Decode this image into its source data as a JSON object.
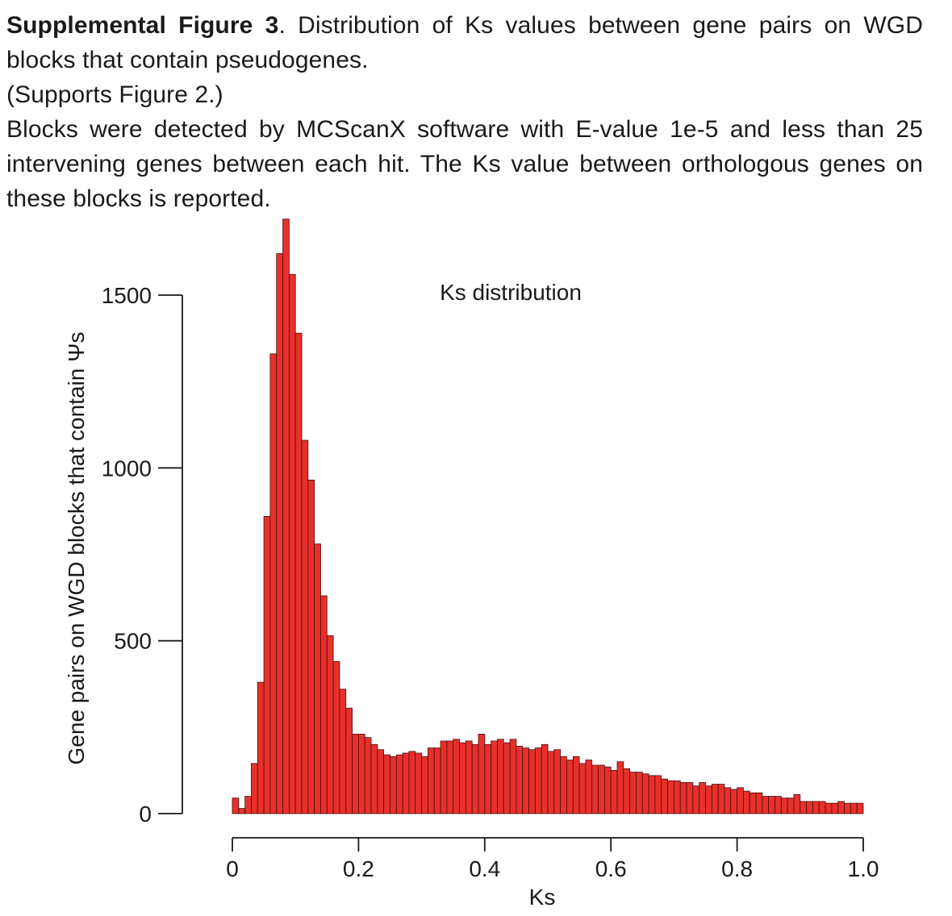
{
  "caption": {
    "label": "Supplemental Figure 3",
    "line1": ". Distribution of Ks values between gene pairs on WGD blocks that contain pseudogenes.",
    "line2": "(Supports Figure 2.)",
    "line3": "Blocks were detected by MCScanX software with E-value 1e-5 and less than 25 intervening genes between each hit. The Ks value between orthologous genes on these blocks is reported."
  },
  "chart_data": {
    "type": "bar",
    "title": "Ks distribution",
    "xlabel": "Ks",
    "ylabel": "Gene pairs on WGD blocks that contain Ψs",
    "xlim": [
      0,
      1.0
    ],
    "ylim": [
      0,
      1500
    ],
    "bin_width": 0.01,
    "x_ticks": [
      0,
      0.2,
      0.4,
      0.6,
      0.8,
      1.0
    ],
    "x_tick_labels": [
      "0",
      "0.2",
      "0.4",
      "0.6",
      "0.8",
      "1.0"
    ],
    "y_ticks": [
      0,
      500,
      1000,
      1500
    ],
    "y_tick_labels": [
      "0",
      "500",
      "1000",
      "1500"
    ],
    "bar_color": "#e8302b",
    "bin_starts": [
      0.0,
      0.01,
      0.02,
      0.03,
      0.04,
      0.05,
      0.06,
      0.07,
      0.08,
      0.09,
      0.1,
      0.11,
      0.12,
      0.13,
      0.14,
      0.15,
      0.16,
      0.17,
      0.18,
      0.19,
      0.2,
      0.21,
      0.22,
      0.23,
      0.24,
      0.25,
      0.26,
      0.27,
      0.28,
      0.29,
      0.3,
      0.31,
      0.32,
      0.33,
      0.34,
      0.35,
      0.36,
      0.37,
      0.38,
      0.39,
      0.4,
      0.41,
      0.42,
      0.43,
      0.44,
      0.45,
      0.46,
      0.47,
      0.48,
      0.49,
      0.5,
      0.51,
      0.52,
      0.53,
      0.54,
      0.55,
      0.56,
      0.57,
      0.58,
      0.59,
      0.6,
      0.61,
      0.62,
      0.63,
      0.64,
      0.65,
      0.66,
      0.67,
      0.68,
      0.69,
      0.7,
      0.71,
      0.72,
      0.73,
      0.74,
      0.75,
      0.76,
      0.77,
      0.78,
      0.79,
      0.8,
      0.81,
      0.82,
      0.83,
      0.84,
      0.85,
      0.86,
      0.87,
      0.88,
      0.89,
      0.9,
      0.91,
      0.92,
      0.93,
      0.94,
      0.95,
      0.96,
      0.97,
      0.98,
      0.99
    ],
    "values": [
      45,
      15,
      50,
      145,
      380,
      860,
      1330,
      1620,
      1720,
      1560,
      1390,
      1080,
      965,
      780,
      630,
      515,
      440,
      360,
      305,
      230,
      230,
      220,
      200,
      185,
      170,
      165,
      170,
      175,
      180,
      175,
      165,
      190,
      190,
      210,
      210,
      215,
      205,
      210,
      200,
      230,
      200,
      210,
      215,
      205,
      215,
      195,
      190,
      185,
      190,
      200,
      180,
      185,
      165,
      155,
      165,
      145,
      155,
      140,
      140,
      135,
      125,
      150,
      130,
      120,
      120,
      115,
      110,
      110,
      100,
      95,
      95,
      90,
      90,
      80,
      90,
      80,
      85,
      85,
      75,
      70,
      75,
      65,
      60,
      60,
      50,
      50,
      50,
      45,
      45,
      55,
      35,
      35,
      35,
      35,
      30,
      30,
      35,
      30,
      30,
      30
    ]
  }
}
